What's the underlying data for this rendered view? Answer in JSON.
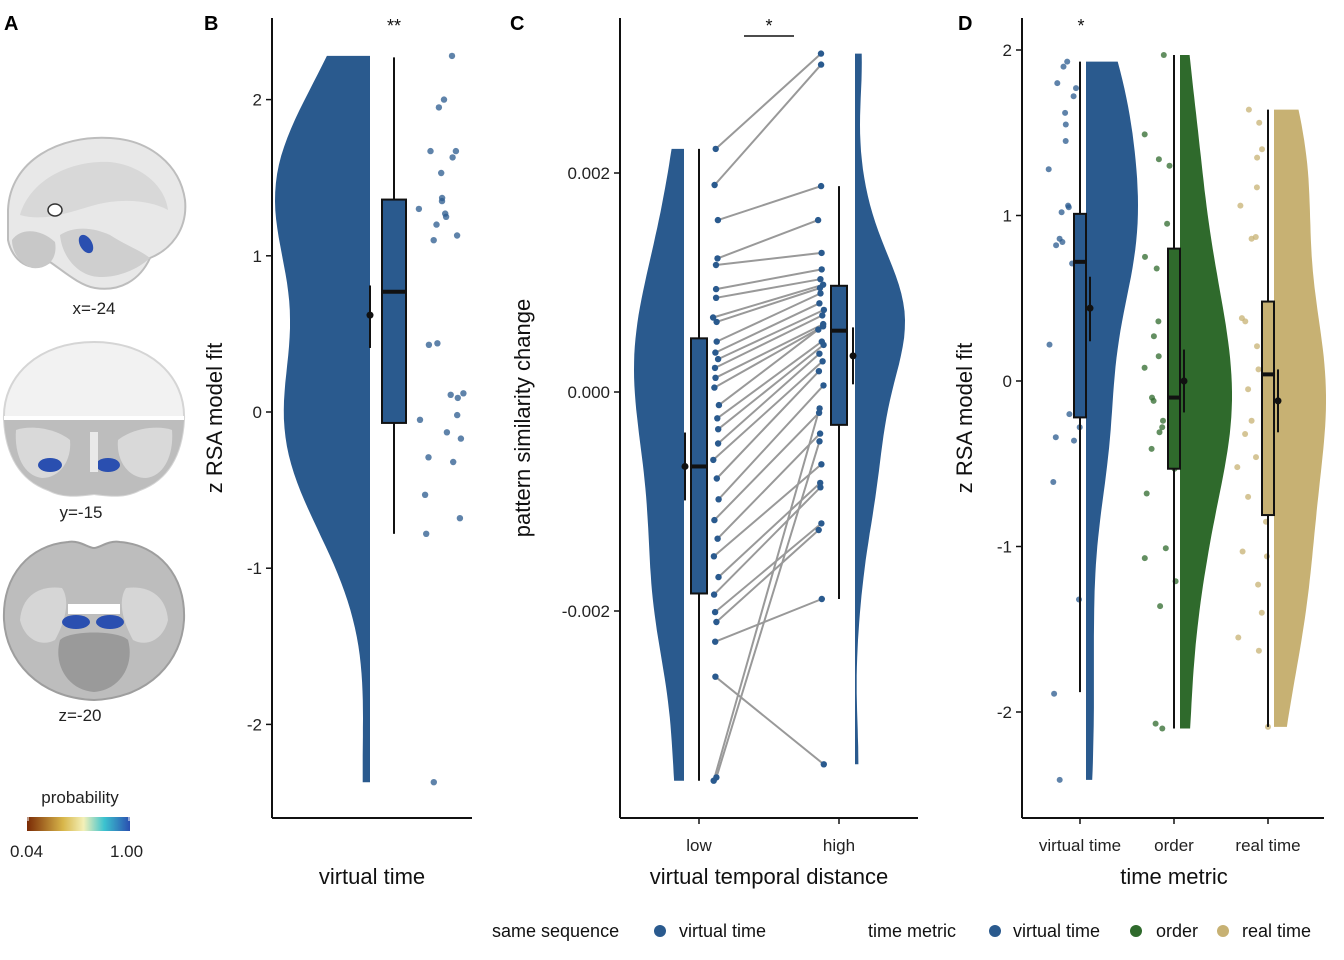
{
  "panels": {
    "A": "A",
    "B": "B",
    "C": "C",
    "D": "D"
  },
  "brain_slices": [
    {
      "label": "x=-24"
    },
    {
      "label": "y=-15"
    },
    {
      "label": "z=-20"
    }
  ],
  "colorbar": {
    "title": "probability",
    "min_label": "0.04",
    "max_label": "1.00",
    "colors": [
      "#7a2a05",
      "#d8b64a",
      "#f3f0b8",
      "#3cc3cf",
      "#2a4fb0"
    ]
  },
  "colors": {
    "virtual_time": "#2a5a8e",
    "order": "#2f6a2c",
    "real_time": "#c7b173",
    "line": "#999999"
  },
  "chart_data": [
    {
      "id": "B",
      "type": "raincloud",
      "xlabel": "virtual time",
      "ylabel": "z RSA model fit",
      "ylim": [
        -2.6,
        2.5
      ],
      "yticks": [
        -2,
        -1,
        0,
        1,
        2
      ],
      "ytick_labels": [
        "-2",
        "-1",
        "0",
        "1",
        "2"
      ],
      "significance": "**",
      "series": [
        {
          "name": "virtual time",
          "box": {
            "q1": -0.07,
            "median": 0.77,
            "q3": 1.36,
            "whisker_low": -0.78,
            "whisker_high": 2.27
          },
          "mean": 0.62,
          "ci": [
            0.41,
            0.81
          ],
          "points": [
            2.28,
            2.0,
            1.95,
            1.67,
            1.67,
            1.63,
            1.53,
            1.37,
            1.35,
            1.3,
            1.27,
            1.25,
            1.2,
            1.13,
            1.1,
            0.44,
            0.43,
            0.12,
            0.11,
            0.09,
            -0.02,
            -0.05,
            -0.13,
            -0.17,
            -0.29,
            -0.32,
            -0.53,
            -0.68,
            -0.78,
            -2.37
          ]
        }
      ]
    },
    {
      "id": "C",
      "type": "raincloud-paired",
      "xlabel": "virtual temporal distance",
      "ylabel": "pattern similarity change",
      "categories": [
        "low",
        "high"
      ],
      "ylim": [
        -0.0039,
        0.0034
      ],
      "yticks": [
        -0.002,
        0.0,
        0.002
      ],
      "ytick_labels": [
        "-0.002",
        "0.000",
        "0.002"
      ],
      "significance": "*",
      "series": [
        {
          "name": "low",
          "box": {
            "q1": -0.00184,
            "median": -0.00068,
            "q3": 0.00049,
            "whisker_low": -0.00355,
            "whisker_high": 0.00222
          },
          "mean": -0.00068,
          "ci": [
            -0.00099,
            -0.00037
          ]
        },
        {
          "name": "high",
          "box": {
            "q1": -0.0003,
            "median": 0.00056,
            "q3": 0.00097,
            "whisker_low": -0.00189,
            "whisker_high": 0.00188
          },
          "mean": 0.00033,
          "ci": [
            7e-05,
            0.00059
          ]
        }
      ],
      "pairs": [
        [
          0.00222,
          0.00309
        ],
        [
          0.00189,
          0.00299
        ],
        [
          0.00157,
          0.00188
        ],
        [
          0.00122,
          0.00157
        ],
        [
          0.00116,
          0.00127
        ],
        [
          0.00094,
          0.00112
        ],
        [
          0.00086,
          0.00103
        ],
        [
          0.00068,
          0.00098
        ],
        [
          0.00064,
          0.00095
        ],
        [
          0.00046,
          0.0009
        ],
        [
          0.00036,
          0.00081
        ],
        [
          0.0003,
          0.00075
        ],
        [
          0.00022,
          0.0007
        ],
        [
          0.00013,
          0.00062
        ],
        [
          4e-05,
          0.0006
        ],
        [
          -0.00012,
          0.00057
        ],
        [
          -0.00024,
          0.00046
        ],
        [
          -0.00034,
          0.00043
        ],
        [
          -0.00047,
          0.00035
        ],
        [
          -0.00062,
          0.00028
        ],
        [
          -0.00079,
          0.00019
        ],
        [
          -0.00098,
          6e-05
        ],
        [
          -0.00117,
          -0.00019
        ],
        [
          -0.00134,
          -0.00038
        ],
        [
          -0.0015,
          -0.00066
        ],
        [
          -0.00169,
          -0.00083
        ],
        [
          -0.00185,
          -0.00087
        ],
        [
          -0.00201,
          -0.0012
        ],
        [
          -0.0021,
          -0.00126
        ],
        [
          -0.00228,
          -0.00189
        ],
        [
          -0.0026,
          -0.0034
        ],
        [
          -0.00352,
          -0.00045
        ],
        [
          -0.00355,
          -0.00015
        ]
      ]
    },
    {
      "id": "D",
      "type": "raincloud",
      "xlabel": "time metric",
      "ylabel": "z RSA model fit",
      "categories": [
        "virtual time",
        "order",
        "real time"
      ],
      "ylim": [
        -2.6,
        2.2
      ],
      "yticks": [
        -2,
        -1,
        0,
        1,
        2
      ],
      "ytick_labels": [
        "-2",
        "-1",
        "0",
        "1",
        "2"
      ],
      "significance": "*",
      "series": [
        {
          "name": "virtual time",
          "color_key": "virtual_time",
          "box": {
            "q1": -0.22,
            "median": 0.72,
            "q3": 1.01,
            "whisker_low": -1.88,
            "whisker_high": 1.93
          },
          "mean": 0.44,
          "ci": [
            0.24,
            0.63
          ],
          "points": [
            1.93,
            1.9,
            1.8,
            1.77,
            1.72,
            1.62,
            1.55,
            1.45,
            1.28,
            1.06,
            1.05,
            1.02,
            0.96,
            0.86,
            0.84,
            0.82,
            0.78,
            0.71,
            0.55,
            0.36,
            0.22,
            -0.2,
            -0.28,
            -0.34,
            -0.36,
            -0.61,
            -1.32,
            -1.89,
            -2.41
          ]
        },
        {
          "name": "order",
          "color_key": "order",
          "box": {
            "q1": -0.53,
            "median": -0.1,
            "q3": 0.8,
            "whisker_low": -2.1,
            "whisker_high": 1.97
          },
          "mean": 0.0,
          "ci": [
            -0.19,
            0.19
          ],
          "points": [
            1.97,
            1.49,
            1.34,
            1.3,
            0.95,
            0.75,
            0.68,
            0.48,
            0.45,
            0.36,
            0.27,
            0.15,
            0.08,
            -0.04,
            -0.1,
            -0.12,
            -0.24,
            -0.28,
            -0.31,
            -0.41,
            -0.5,
            -0.53,
            -0.68,
            -1.01,
            -1.07,
            -1.21,
            -1.36,
            -2.07,
            -2.1
          ]
        },
        {
          "name": "real time",
          "color_key": "real_time",
          "box": {
            "q1": -0.81,
            "median": 0.04,
            "q3": 0.48,
            "whisker_low": -2.09,
            "whisker_high": 1.64
          },
          "mean": -0.12,
          "ci": [
            -0.31,
            0.07
          ],
          "points": [
            1.64,
            1.56,
            1.4,
            1.35,
            1.17,
            1.06,
            0.86,
            0.87,
            0.38,
            0.36,
            0.26,
            0.21,
            0.07,
            -0.03,
            -0.05,
            -0.15,
            -0.24,
            -0.32,
            -0.46,
            -0.52,
            -0.7,
            -0.85,
            -1.03,
            -1.06,
            -1.23,
            -1.4,
            -1.55,
            -1.63,
            -2.09
          ]
        }
      ]
    }
  ],
  "legends": [
    {
      "title": "same sequence",
      "items": [
        {
          "label": "virtual time",
          "color_key": "virtual_time"
        }
      ]
    },
    {
      "title": "time metric",
      "items": [
        {
          "label": "virtual time",
          "color_key": "virtual_time"
        },
        {
          "label": "order",
          "color_key": "order"
        },
        {
          "label": "real time",
          "color_key": "real_time"
        }
      ]
    }
  ]
}
